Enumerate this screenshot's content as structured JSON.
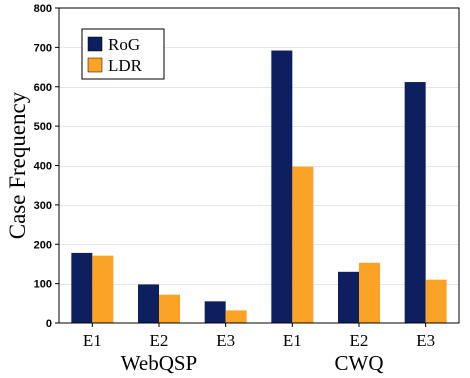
{
  "chart_data": {
    "type": "bar",
    "categories": [
      "E1",
      "E2",
      "E3",
      "E1",
      "E2",
      "E3"
    ],
    "groups": [
      {
        "label": "WebQSP",
        "categories": [
          0,
          1,
          2
        ]
      },
      {
        "label": "CWQ",
        "categories": [
          3,
          4,
          5
        ]
      }
    ],
    "series": [
      {
        "name": "RoG",
        "color": "#0d1f5e",
        "values": [
          178,
          98,
          55,
          692,
          130,
          612
        ]
      },
      {
        "name": "LDR",
        "color": "#fba326",
        "values": [
          171,
          72,
          32,
          397,
          153,
          110
        ]
      }
    ],
    "title": "",
    "xlabel": "",
    "ylabel": "Case Frequency",
    "ylim": [
      0,
      800
    ],
    "yticks": [
      0,
      100,
      200,
      300,
      400,
      500,
      600,
      700,
      800
    ],
    "grid": true,
    "legend_position": "top-left"
  }
}
